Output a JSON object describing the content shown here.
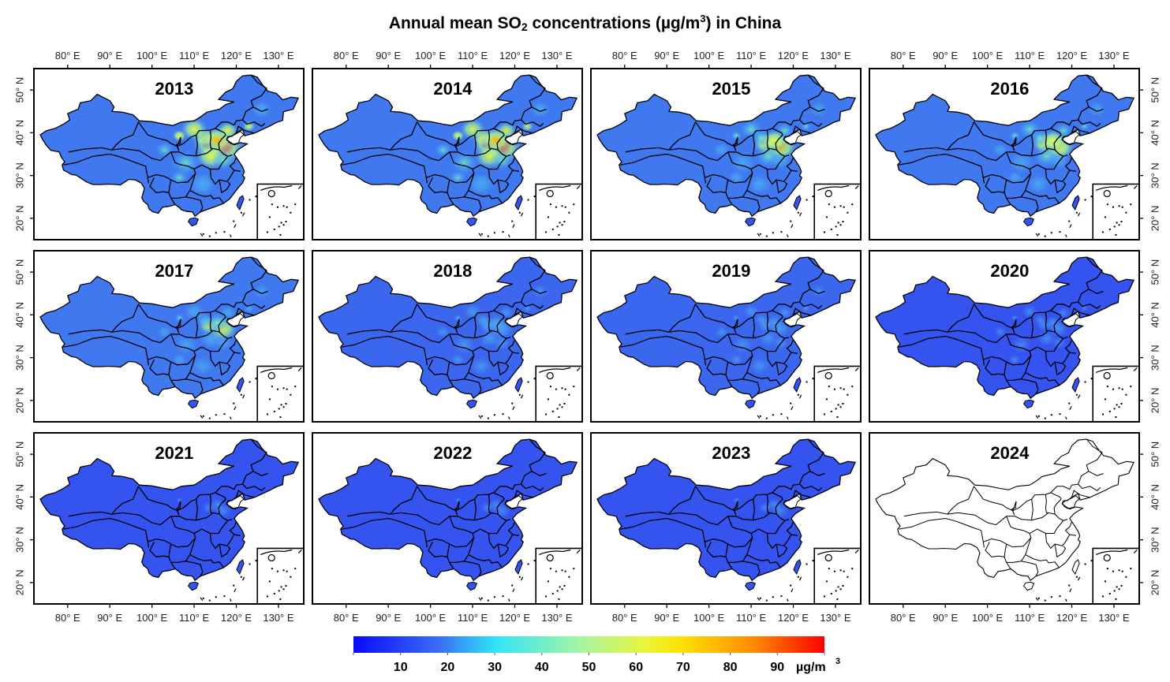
{
  "title": {
    "prefix": "Annual mean SO",
    "subscript": "2",
    "middle": " concentrations (µg/m",
    "superscript": "3",
    "suffix": ") in China"
  },
  "chart_data": {
    "type": "heatmap",
    "title": "Annual mean SO2 concentrations (µg/m3) in China",
    "xlabel": "",
    "ylabel": "",
    "x_ticks": [
      "80° E",
      "90° E",
      "100° E",
      "110° E",
      "120° E",
      "130° E"
    ],
    "x_tick_values": [
      80,
      90,
      100,
      110,
      120,
      130
    ],
    "y_ticks": [
      "20° N",
      "30° N",
      "40° N",
      "50° N"
    ],
    "y_tick_values": [
      20,
      30,
      40,
      50
    ],
    "xlim": [
      72,
      136
    ],
    "ylim": [
      15,
      55
    ],
    "panels": [
      {
        "year": "2013",
        "has_data": true,
        "hotspot_level": 1.0
      },
      {
        "year": "2014",
        "has_data": true,
        "hotspot_level": 0.9
      },
      {
        "year": "2015",
        "has_data": true,
        "hotspot_level": 0.65
      },
      {
        "year": "2016",
        "has_data": true,
        "hotspot_level": 0.6
      },
      {
        "year": "2017",
        "has_data": true,
        "hotspot_level": 0.45
      },
      {
        "year": "2018",
        "has_data": true,
        "hotspot_level": 0.25
      },
      {
        "year": "2019",
        "has_data": true,
        "hotspot_level": 0.15
      },
      {
        "year": "2020",
        "has_data": true,
        "hotspot_level": 0.1
      },
      {
        "year": "2021",
        "has_data": true,
        "hotspot_level": 0.05
      },
      {
        "year": "2022",
        "has_data": true,
        "hotspot_level": 0.05
      },
      {
        "year": "2023",
        "has_data": true,
        "hotspot_level": 0.05
      },
      {
        "year": "2024",
        "has_data": false,
        "hotspot_level": 0
      }
    ],
    "colorbar": {
      "range": [
        0,
        100
      ],
      "ticks": [
        10,
        20,
        30,
        40,
        50,
        60,
        70,
        80,
        90
      ],
      "tick_labels": [
        "10",
        "20",
        "30",
        "40",
        "50",
        "60",
        "70",
        "80",
        "90"
      ],
      "unit_prefix": "µg/m",
      "unit_superscript": "3",
      "colors": [
        "#0a0aff",
        "#3a6cf7",
        "#2fe4f7",
        "#a4f5a4",
        "#e9f53a",
        "#ffe000",
        "#ff8a00",
        "#ff0000"
      ]
    }
  }
}
